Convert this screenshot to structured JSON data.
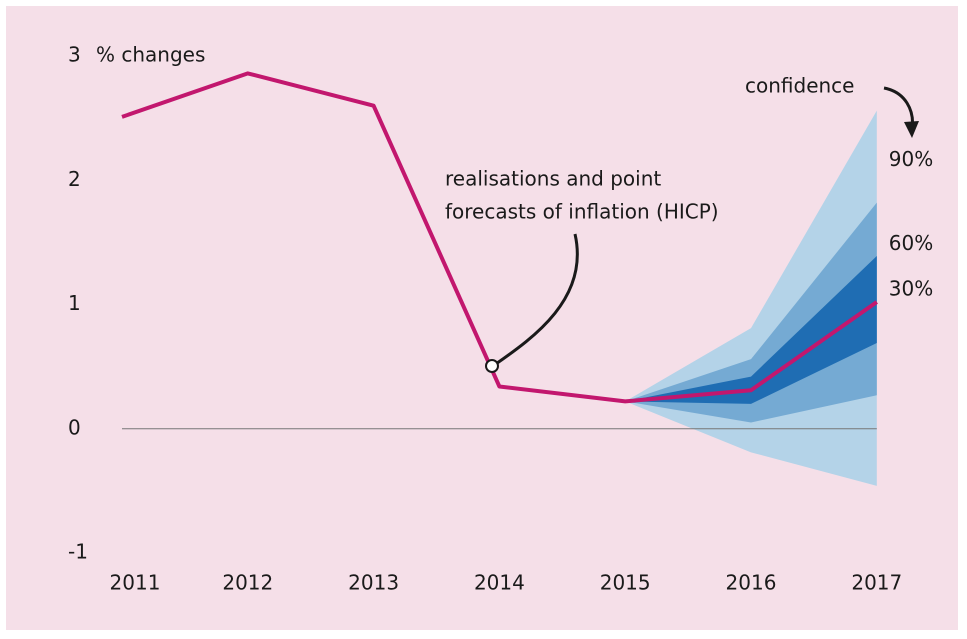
{
  "chart_data": {
    "type": "fan",
    "y_label": "% changes",
    "annotations": {
      "confidence": "confidence",
      "line_note": [
        "realisations and point",
        "forecasts of inflation (HICP)"
      ]
    },
    "categories": [
      "2011",
      "2012",
      "2013",
      "2014",
      "2015",
      "2016",
      "2017"
    ],
    "ylim": [
      -1,
      3
    ],
    "yticks": [
      3,
      2,
      1,
      0,
      -1
    ],
    "zero_line": true,
    "line": {
      "color": "#c2176e",
      "values": [
        2.51,
        2.86,
        2.6,
        0.34,
        0.22,
        0.31,
        1.02
      ]
    },
    "bands": [
      {
        "name": "90%",
        "color": "#b4d3e8",
        "lower": [
          null,
          null,
          null,
          null,
          0.22,
          -0.19,
          -0.46
        ],
        "upper": [
          null,
          null,
          null,
          null,
          0.22,
          0.81,
          2.56
        ]
      },
      {
        "name": "60%",
        "color": "#75aad3",
        "lower": [
          null,
          null,
          null,
          null,
          0.22,
          0.05,
          0.27
        ],
        "upper": [
          null,
          null,
          null,
          null,
          0.22,
          0.56,
          1.82
        ]
      },
      {
        "name": "30%",
        "color": "#1f6db3",
        "lower": [
          null,
          null,
          null,
          null,
          0.22,
          0.2,
          0.69
        ],
        "upper": [
          null,
          null,
          null,
          null,
          0.22,
          0.42,
          1.39
        ]
      }
    ]
  }
}
